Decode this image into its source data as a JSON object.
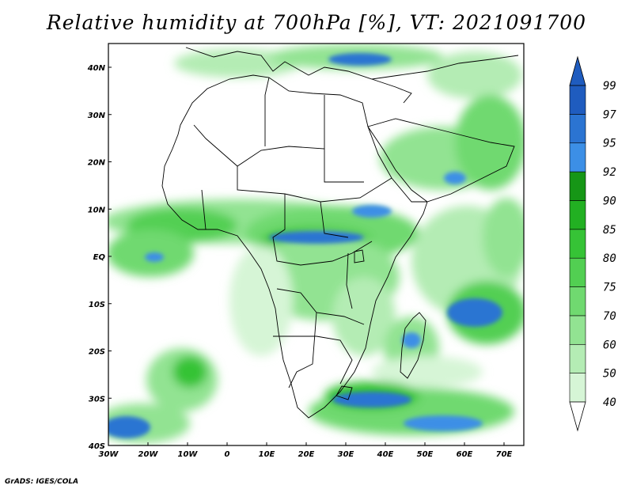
{
  "title": "Relative humidity at 700hPa [%], VT: 2021091700",
  "credit": "GrADS: IGES/COLA",
  "map": {
    "lon_range": [
      -30,
      75
    ],
    "lat_range": [
      -40,
      45
    ],
    "lon_ticks": [
      "30W",
      "20W",
      "10W",
      "0",
      "10E",
      "20E",
      "30E",
      "40E",
      "50E",
      "60E",
      "70E"
    ],
    "lat_ticks": [
      "40N",
      "30N",
      "20N",
      "10N",
      "EQ",
      "10S",
      "20S",
      "30S",
      "40S"
    ]
  },
  "colorbar": {
    "levels": [
      "40",
      "50",
      "60",
      "70",
      "75",
      "80",
      "85",
      "90",
      "92",
      "95",
      "97",
      "99"
    ],
    "colors": [
      "#f4fcf4",
      "#d6f5d6",
      "#b4ecb4",
      "#92e392",
      "#70d970",
      "#52cf52",
      "#36c336",
      "#22b022",
      "#169616",
      "#3c8fe6",
      "#2b74d2",
      "#1f5cbf"
    ]
  }
}
